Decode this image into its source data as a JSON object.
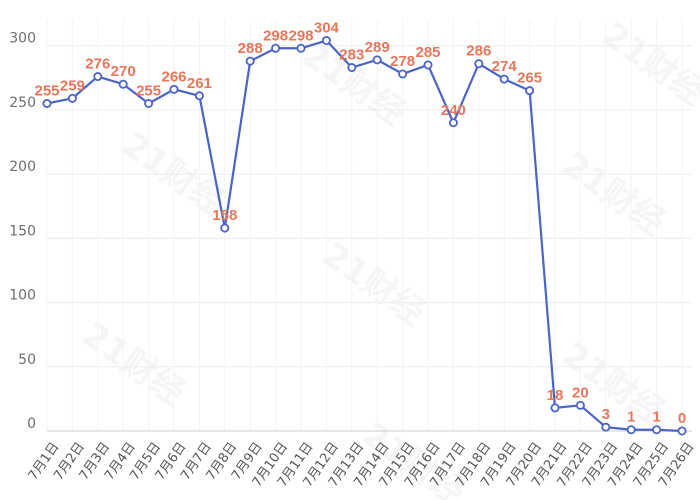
{
  "watermark_text": "21财经",
  "colors": {
    "line": "#4a64c8",
    "point_fill": "#ffffff",
    "label": "#e8765a",
    "grid": "#ececec",
    "axis": "#cccccc",
    "tick_text": "#6e6e6e"
  },
  "chart_data": {
    "type": "line",
    "title": "",
    "xlabel": "",
    "ylabel": "",
    "ylim": [
      0,
      320
    ],
    "yticks": [
      0,
      50,
      100,
      150,
      200,
      250,
      300
    ],
    "grid": true,
    "categories": [
      "7月1日",
      "7月2日",
      "7月3日",
      "7月4日",
      "7月5日",
      "7月6日",
      "7月7日",
      "7月8日",
      "7月9日",
      "7月10日",
      "7月11日",
      "7月12日",
      "7月13日",
      "7月14日",
      "7月15日",
      "7月16日",
      "7月17日",
      "7月18日",
      "7月19日",
      "7月20日",
      "7月21日",
      "7月22日",
      "7月23日",
      "7月24日",
      "7月25日",
      "7月26日"
    ],
    "series": [
      {
        "values": [
          255,
          259,
          276,
          270,
          255,
          266,
          261,
          158,
          288,
          298,
          298,
          304,
          283,
          289,
          278,
          285,
          240,
          286,
          274,
          265,
          18,
          20,
          3,
          1,
          1,
          0
        ],
        "labels": [
          "255",
          "259",
          "276",
          "270",
          "255",
          "266",
          "261",
          "158",
          "288",
          "298",
          "298",
          "304",
          "283",
          "289",
          "278",
          "285",
          "240",
          "286",
          "274",
          "265",
          "18",
          "20",
          "3",
          "1",
          "1",
          "0"
        ]
      }
    ]
  }
}
